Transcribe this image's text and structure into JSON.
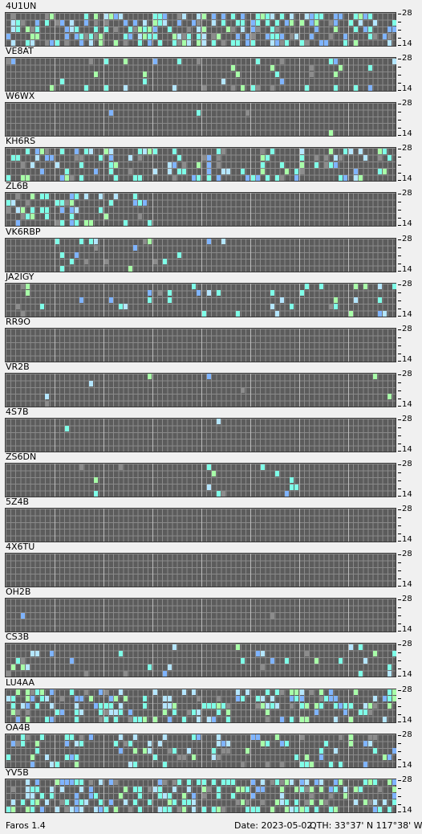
{
  "app": {
    "version": "Faros 1.4"
  },
  "status": {
    "date": "Date: 2023-05-02",
    "qth": "QTH: 33°37' N  117°38' W"
  },
  "scale": {
    "top": "28",
    "bottom": "14"
  },
  "colors": {
    "grid_bg": "#5c5c5c",
    "cell_cyan": "#7fffe8",
    "cell_blue": "#7fb4ff",
    "cell_green": "#a8ffa8",
    "cell_gray": "#8c8c8c",
    "cell_lightblue": "#b4e6ff"
  },
  "beacons": [
    {
      "name": "4U1UN",
      "density": 0.42,
      "range": [
        0,
        80
      ]
    },
    {
      "name": "VE8AT",
      "density": 0.12,
      "range": [
        0,
        80
      ]
    },
    {
      "name": "W6WX",
      "density": 0.01,
      "range": [
        0,
        80
      ]
    },
    {
      "name": "KH6RS",
      "density": 0.28,
      "range": [
        0,
        80
      ]
    },
    {
      "name": "ZL6B",
      "density": 0.28,
      "range": [
        0,
        30
      ]
    },
    {
      "name": "VK6RBP",
      "density": 0.08,
      "range": [
        10,
        45
      ]
    },
    {
      "name": "JA2IGY",
      "density": 0.08,
      "range": [
        0,
        80
      ]
    },
    {
      "name": "RR9O",
      "density": 0.01,
      "range": [
        40,
        48
      ]
    },
    {
      "name": "VR2B",
      "density": 0.02,
      "range": [
        0,
        80
      ]
    },
    {
      "name": "4S7B",
      "density": 0.003,
      "range": [
        0,
        80
      ]
    },
    {
      "name": "ZS6DN",
      "density": 0.04,
      "range": [
        15,
        60
      ]
    },
    {
      "name": "5Z4B",
      "density": 0.0,
      "range": [
        0,
        80
      ]
    },
    {
      "name": "4X6TU",
      "density": 0.003,
      "range": [
        40,
        50
      ]
    },
    {
      "name": "OH2B",
      "density": 0.005,
      "range": [
        0,
        80
      ]
    },
    {
      "name": "CS3B",
      "density": 0.1,
      "range": [
        0,
        80
      ]
    },
    {
      "name": "LU4AA",
      "density": 0.38,
      "range": [
        0,
        80
      ]
    },
    {
      "name": "OA4B",
      "density": 0.22,
      "range": [
        0,
        80
      ]
    },
    {
      "name": "YV5B",
      "density": 0.45,
      "range": [
        0,
        80
      ]
    }
  ]
}
